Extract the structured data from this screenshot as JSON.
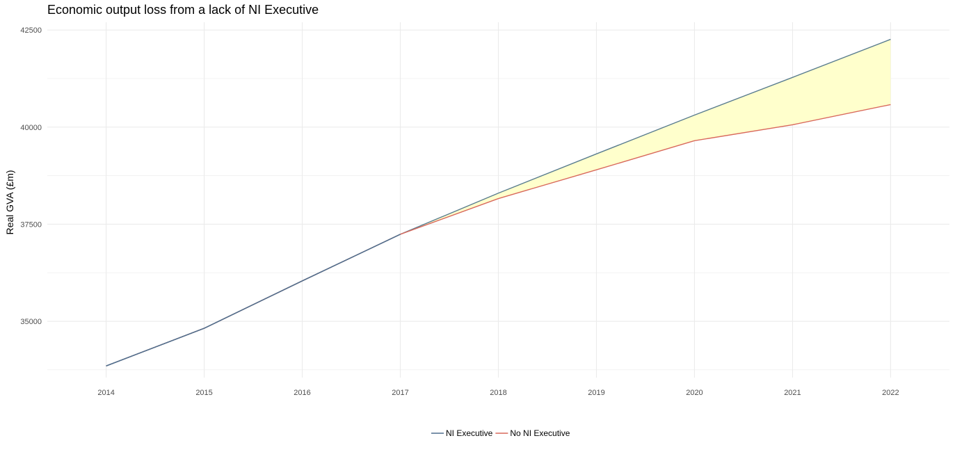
{
  "chart_data": {
    "type": "line",
    "title": "Economic output loss from a lack of NI Executive",
    "xlabel": "",
    "ylabel": "Real GVA (£m)",
    "x": [
      2014,
      2015,
      2016,
      2017,
      2018,
      2019,
      2020,
      2021,
      2022
    ],
    "xlim": [
      2013.4,
      2022.6
    ],
    "ylim": [
      33550,
      42700
    ],
    "y_ticks": [
      35000,
      37500,
      40000,
      42500
    ],
    "y_minor_ticks": [
      33750,
      36250,
      38750,
      41250
    ],
    "grid": true,
    "legend_position": "bottom",
    "series": [
      {
        "name": "NI Executive",
        "color": "#5a7d8f",
        "values": [
          33850,
          34820,
          36040,
          37240,
          38300,
          39310,
          40310,
          41280,
          42260
        ]
      },
      {
        "name": "No NI Executive",
        "color": "#d9695c",
        "values": [
          33850,
          34820,
          36040,
          37240,
          38160,
          38900,
          39650,
          40060,
          40580
        ]
      }
    ],
    "legend_colors": [
      "#4e6e8e",
      "#d9695c"
    ],
    "fill_between": {
      "series": [
        "NI Executive",
        "No NI Executive"
      ],
      "color": "#ffffcc"
    },
    "overlap_color": "#4e6e8e",
    "grid_color": "#ebebeb"
  }
}
